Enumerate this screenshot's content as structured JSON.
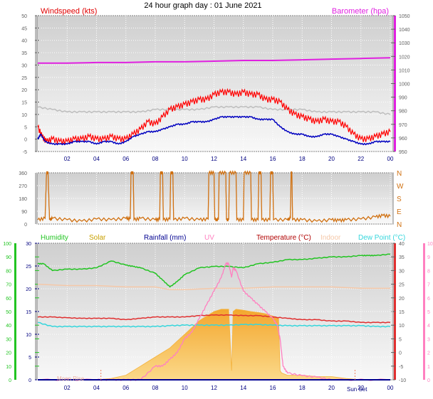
{
  "header": {
    "title": "24 hour graph day : 01 June 2021"
  },
  "x_ticks": [
    "02",
    "04",
    "06",
    "08",
    "10",
    "12",
    "14",
    "16",
    "18",
    "20",
    "22",
    "00"
  ],
  "colors": {
    "windspeed": "#ff0000",
    "windgust_bg": "#bdbdbd",
    "wind_avg": "#0000c0",
    "barometer": "#e020e0",
    "direction": "#d07010",
    "humidity": "#22c422",
    "solar": "#f4b23c",
    "rainfall": "#000090",
    "uv": "#ff80c0",
    "temperature": "#e03030",
    "indoor": "#f5c8a8",
    "dewpoint": "#35d6dc"
  },
  "chart_data": [
    {
      "type": "line",
      "title": "24 hour graph day : 01 June 2021",
      "x_unit": "hour",
      "x_range": [
        0,
        24
      ],
      "left_axis": {
        "label": "Windspeed (kts)",
        "range": [
          -5,
          50
        ],
        "ticks": [
          "-5",
          "0",
          "5",
          "10",
          "15",
          "20",
          "25",
          "30",
          "35",
          "40",
          "45",
          "50"
        ]
      },
      "right_axis": {
        "label": "Barometer (hpa)",
        "range": [
          950,
          1050
        ],
        "ticks": [
          "950",
          "960",
          "970",
          "980",
          "990",
          "1000",
          "1010",
          "1020",
          "1030",
          "1040",
          "1050"
        ]
      },
      "series": [
        {
          "name": "Windspeed (kts)",
          "axis": "left",
          "kind": "gust",
          "x": [
            0,
            0.3,
            0.6,
            1,
            1.5,
            2,
            2.5,
            3,
            3.5,
            4,
            4.5,
            5,
            5.5,
            6,
            6.5,
            7,
            7.5,
            8,
            8.5,
            9,
            9.5,
            10,
            10.5,
            11,
            11.5,
            12,
            12.5,
            13,
            13.5,
            14,
            14.5,
            15,
            15.5,
            16,
            16.5,
            17,
            17.5,
            18,
            18.5,
            19,
            19.5,
            20,
            20.5,
            21,
            21.5,
            22,
            22.5,
            23,
            23.5,
            24
          ],
          "values": [
            5,
            1,
            -1,
            0,
            -1,
            -1,
            0,
            0,
            1,
            0,
            0,
            1,
            0,
            0,
            2,
            4,
            7,
            6,
            9,
            12,
            13,
            14,
            15,
            16,
            16,
            18,
            19,
            19,
            18,
            19,
            18,
            18,
            16,
            16,
            15,
            12,
            10,
            9,
            8,
            7,
            8,
            7,
            7,
            5,
            2,
            0,
            0,
            1,
            2,
            3
          ]
        },
        {
          "name": "average",
          "axis": "left",
          "kind": "avg",
          "x": [
            0,
            0.2,
            0.5,
            1,
            1.5,
            2,
            2.5,
            3,
            3.5,
            4,
            4.5,
            5,
            5.5,
            6,
            6.5,
            7,
            7.5,
            8,
            8.5,
            9,
            9.5,
            10,
            10.5,
            11,
            11.5,
            12,
            12.5,
            13,
            13.5,
            14,
            14.5,
            15,
            15.5,
            16,
            16.5,
            17,
            17.5,
            18,
            18.5,
            19,
            19.5,
            20,
            20.5,
            21,
            21.5,
            22,
            22.5,
            23,
            23.5,
            24
          ],
          "values": [
            0,
            2,
            -1,
            -2,
            -2,
            -2,
            -1,
            -1,
            -1,
            -2,
            -1,
            -1,
            -2,
            -1,
            1,
            2,
            3,
            3,
            4,
            5,
            6,
            6,
            7,
            7,
            7,
            8,
            9,
            9,
            9,
            9,
            9,
            8,
            8,
            8,
            5,
            3,
            2,
            2,
            1,
            1,
            2,
            2,
            1,
            0,
            -1,
            -2,
            -2,
            -1,
            -1,
            -1
          ]
        },
        {
          "name": "background",
          "axis": "left",
          "kind": "grey",
          "x": [
            0,
            1,
            2,
            3,
            4,
            5,
            6,
            7,
            8,
            9,
            10,
            11,
            12,
            13,
            14,
            15,
            16,
            17,
            18,
            19,
            20,
            21,
            22,
            23,
            24
          ],
          "values": [
            13,
            12,
            11,
            11,
            11,
            11,
            11,
            11,
            12,
            12,
            12,
            12,
            13,
            13,
            13,
            13,
            12,
            12,
            12,
            11,
            11,
            11,
            11,
            11,
            10
          ]
        },
        {
          "name": "Barometer (hpa)",
          "axis": "right",
          "x": [
            0,
            2,
            4,
            6,
            8,
            10,
            12,
            14,
            16,
            18,
            20,
            22,
            24
          ],
          "values": [
            1015,
            1015,
            1015.5,
            1015.5,
            1016,
            1016,
            1016.5,
            1017,
            1017,
            1017.5,
            1018,
            1018.5,
            1019
          ]
        }
      ]
    },
    {
      "type": "line",
      "title": "",
      "x_range": [
        0,
        24
      ],
      "left_axis": {
        "range": [
          0,
          360
        ],
        "ticks": [
          "0",
          "45",
          "90",
          "135",
          "180",
          "225",
          "270",
          "315",
          "360"
        ]
      },
      "right_axis": {
        "labels": [
          "N",
          "W",
          "S",
          "E",
          "N"
        ]
      },
      "series": [
        {
          "name": "",
          "axis": "left",
          "x": [
            0,
            0.5,
            0.6,
            0.7,
            0.8,
            1,
            2,
            3,
            4,
            5,
            6,
            6.3,
            6.35,
            6.5,
            6.55,
            7,
            8,
            8.3,
            8.35,
            8.5,
            8.55,
            9,
            9.05,
            9.2,
            9.25,
            10,
            11,
            11.6,
            11.65,
            12,
            12.05,
            12.3,
            12.35,
            12.8,
            12.85,
            13,
            13.05,
            13.5,
            13.55,
            14,
            14.05,
            14.5,
            14.55,
            15,
            15.05,
            15.2,
            15.25,
            15.8,
            15.85,
            16,
            16.05,
            17,
            17.2,
            17.25,
            17.3,
            17.35,
            18,
            19,
            20,
            20.5,
            21,
            22,
            23,
            23.5,
            24
          ],
          "values": [
            30,
            40,
            360,
            360,
            30,
            40,
            30,
            20,
            35,
            30,
            40,
            35,
            360,
            360,
            30,
            40,
            30,
            35,
            360,
            360,
            30,
            35,
            360,
            360,
            30,
            40,
            30,
            35,
            360,
            360,
            30,
            30,
            360,
            360,
            30,
            30,
            360,
            360,
            30,
            30,
            360,
            360,
            30,
            30,
            360,
            360,
            30,
            30,
            360,
            360,
            30,
            30,
            40,
            360,
            360,
            30,
            30,
            20,
            30,
            25,
            30,
            35,
            50,
            60,
            55
          ]
        }
      ]
    },
    {
      "type": "area",
      "title": "",
      "x_range": [
        0,
        24
      ],
      "left_axis": {
        "label": "Humidity",
        "range": [
          0,
          100
        ],
        "ticks": [
          "0",
          "10",
          "20",
          "30",
          "40",
          "50",
          "60",
          "70",
          "80",
          "90",
          "100"
        ]
      },
      "left_axis_2": {
        "range": [
          0,
          30
        ],
        "ticks": [
          "0",
          "5",
          "10",
          "15",
          "20",
          "25",
          "30"
        ]
      },
      "right_axis": {
        "label": "Temperature (°C)",
        "range": [
          -10,
          40
        ],
        "ticks": [
          "-10",
          "-5",
          "0",
          "5",
          "10",
          "15",
          "20",
          "25",
          "30",
          "35",
          "40"
        ]
      },
      "right_axis_2": {
        "label": "UV",
        "range": [
          0,
          10
        ],
        "ticks": [
          "0",
          "1",
          "2",
          "3",
          "4",
          "5",
          "6",
          "7",
          "8",
          "9",
          "10"
        ]
      },
      "annotations": [
        "Moon Rise",
        "Sun Set"
      ],
      "series": [
        {
          "name": "Humidity",
          "axis": "left",
          "kind": "line",
          "x": [
            0,
            0.4,
            1,
            2,
            3,
            4,
            5,
            6,
            6.5,
            7,
            8,
            8.5,
            9,
            9.5,
            10,
            11,
            12,
            13,
            14,
            15,
            16,
            17,
            18,
            19,
            20,
            21,
            22,
            22.5,
            23,
            24
          ],
          "values": [
            85,
            85,
            80,
            81,
            81,
            82,
            87,
            84,
            83,
            82,
            78,
            73,
            68,
            72,
            77,
            82,
            83,
            83,
            82,
            85,
            86,
            88,
            88,
            89,
            90,
            90,
            91,
            91,
            91,
            92
          ]
        },
        {
          "name": "Solar",
          "axis": "left2",
          "kind": "area",
          "x": [
            0,
            4,
            5,
            6,
            6.5,
            7,
            7.5,
            8,
            8.5,
            9,
            9.5,
            10,
            10.5,
            11,
            11.5,
            12,
            12.5,
            13,
            13.2,
            13.3,
            13.5,
            14,
            14.5,
            15,
            15.5,
            16,
            16.4,
            16.5,
            16.6,
            17,
            18,
            19,
            20,
            21,
            22,
            24
          ],
          "values": [
            0,
            0,
            0.3,
            1,
            2,
            3,
            4,
            5,
            6,
            7,
            8.5,
            10,
            11.5,
            13,
            14,
            15,
            15.5,
            15.5,
            2,
            15,
            15.5,
            15.3,
            15,
            14.8,
            14.5,
            14,
            13.5,
            2,
            1.5,
            1,
            1,
            0.7,
            0.7,
            0.3,
            0,
            0
          ]
        },
        {
          "name": "UV",
          "axis": "right2",
          "kind": "line",
          "x": [
            0,
            4,
            5,
            6,
            7,
            8,
            8.5,
            9,
            9.5,
            10,
            10.5,
            11,
            11.5,
            12,
            12.5,
            12.8,
            13,
            13.2,
            13.3,
            13.5,
            14,
            14.5,
            15,
            15.5,
            16,
            16.3,
            16.5,
            16.7,
            17,
            18,
            19,
            20,
            24
          ],
          "values": [
            0,
            0,
            0,
            0,
            0,
            1,
            1,
            1.5,
            2,
            3,
            3.5,
            4.5,
            5.5,
            6.5,
            7.5,
            8.5,
            8.5,
            7.5,
            8.2,
            8,
            6.5,
            6,
            5.5,
            5,
            4.5,
            4,
            3,
            1,
            0.5,
            0.3,
            0.2,
            0,
            0
          ]
        },
        {
          "name": "Temperature (°C)",
          "axis": "right",
          "kind": "line",
          "x": [
            0,
            1,
            2,
            3,
            4,
            5,
            6,
            7,
            8,
            9,
            10,
            11,
            12,
            13,
            14,
            15,
            16,
            17,
            18,
            19,
            20,
            21,
            22,
            23,
            24
          ],
          "values": [
            13,
            13,
            12.7,
            12.5,
            12.5,
            12.5,
            12,
            12.5,
            13,
            13,
            13,
            13.5,
            13.7,
            13.7,
            13.5,
            13.5,
            13,
            12.5,
            12,
            12,
            11.5,
            11.5,
            11,
            11,
            11
          ]
        },
        {
          "name": "Indoor",
          "axis": "right",
          "kind": "line",
          "x": [
            0,
            2,
            4,
            6,
            8,
            9,
            10,
            12,
            14,
            16,
            18,
            20,
            22,
            24
          ],
          "values": [
            25,
            24.5,
            24.5,
            24,
            24,
            23,
            23,
            23.5,
            23.5,
            24,
            24,
            24,
            23.5,
            23.5
          ]
        },
        {
          "name": "Dew Point (°C)",
          "axis": "right",
          "kind": "line",
          "x": [
            0,
            1,
            2,
            3,
            4,
            5,
            6,
            7,
            8,
            9,
            10,
            11,
            12,
            13,
            14,
            15,
            16,
            17,
            18,
            19,
            20,
            21,
            22,
            23,
            24
          ],
          "values": [
            11,
            9.5,
            9.5,
            9.5,
            9.5,
            9.5,
            9.5,
            9.5,
            9.5,
            9.8,
            10,
            10,
            10,
            10,
            10.2,
            10.2,
            10,
            9.8,
            9.8,
            9.8,
            9.8,
            9.8,
            9.8,
            9.5,
            9.5
          ]
        },
        {
          "name": "Rainfall (mm)",
          "axis": "left2",
          "kind": "line",
          "x": [
            0,
            24
          ],
          "values": [
            0,
            0
          ]
        }
      ]
    }
  ]
}
